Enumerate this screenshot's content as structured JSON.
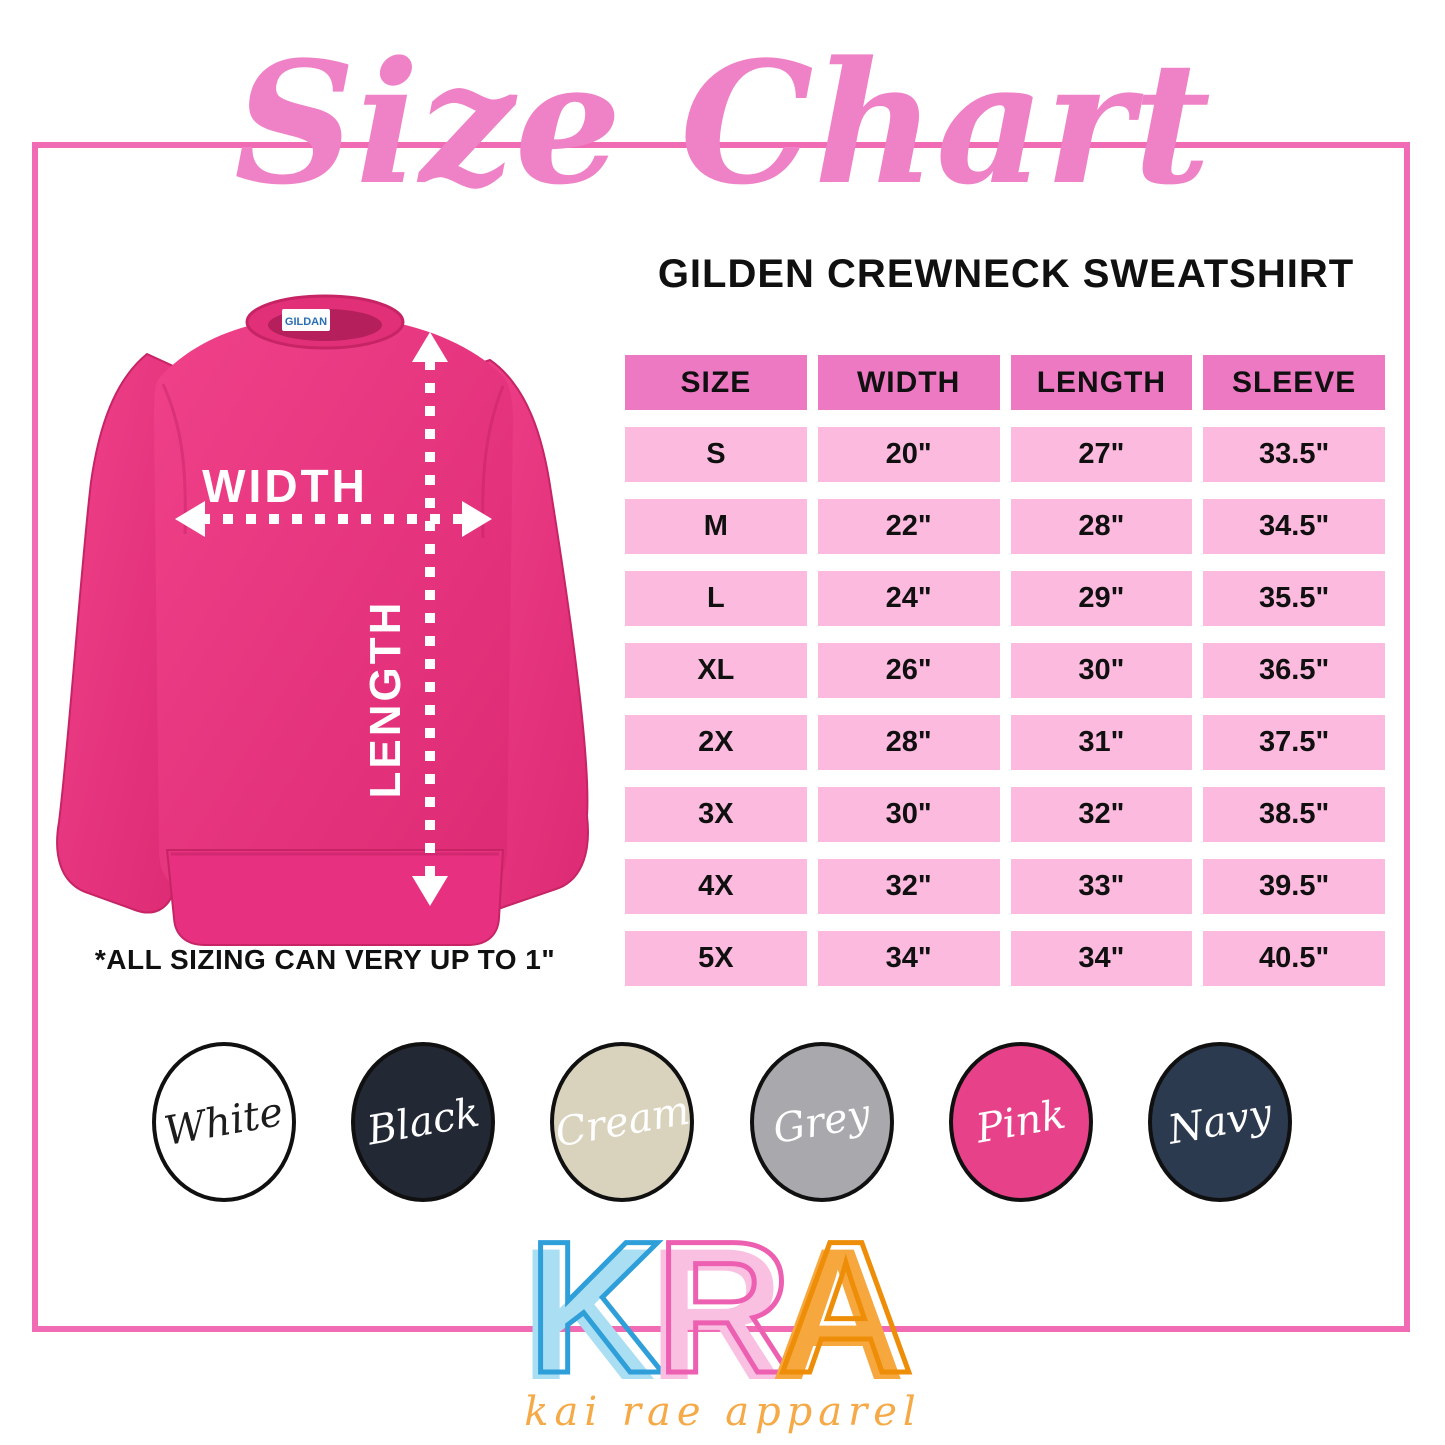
{
  "title": "Size Chart",
  "subtitle": "GILDEN CREWNECK SWEATSHIRT",
  "diagram": {
    "width_label": "WIDTH",
    "length_label": "LENGTH",
    "neck_tag": "GILDAN"
  },
  "note": "*ALL SIZING CAN VERY UP TO 1\"",
  "size_table": {
    "columns": [
      "SIZE",
      "WIDTH",
      "LENGTH",
      "SLEEVE"
    ],
    "rows": [
      [
        "S",
        "20\"",
        "27\"",
        "33.5\""
      ],
      [
        "M",
        "22\"",
        "28\"",
        "34.5\""
      ],
      [
        "L",
        "24\"",
        "29\"",
        "35.5\""
      ],
      [
        "XL",
        "26\"",
        "30\"",
        "36.5\""
      ],
      [
        "2X",
        "28\"",
        "31\"",
        "37.5\""
      ],
      [
        "3X",
        "30\"",
        "32\"",
        "38.5\""
      ],
      [
        "4X",
        "32\"",
        "33\"",
        "39.5\""
      ],
      [
        "5X",
        "34\"",
        "34\"",
        "40.5\""
      ]
    ]
  },
  "colors_available": [
    {
      "name": "White",
      "fill": "#ffffff",
      "text_color": "#1c1c1c"
    },
    {
      "name": "Black",
      "fill": "#222834",
      "text_color": "#ffffff"
    },
    {
      "name": "Cream",
      "fill": "#d9d3bd",
      "text_color": "#ffffff"
    },
    {
      "name": "Grey",
      "fill": "#a8a8ad",
      "text_color": "#ffffff"
    },
    {
      "name": "Pink",
      "fill": "#e74289",
      "text_color": "#ffffff"
    },
    {
      "name": "Navy",
      "fill": "#2c3a50",
      "text_color": "#ffffff"
    }
  ],
  "logo": {
    "letters": [
      {
        "char": "K",
        "fill": "#aadef2",
        "stroke": "#2f9fd9"
      },
      {
        "char": "R",
        "fill": "#f9c0e2",
        "stroke": "#ec5fb1"
      },
      {
        "char": "A",
        "fill": "#f6a73e",
        "stroke": "#ee8d07"
      }
    ],
    "tagline": "kai rae apparel"
  },
  "theme": {
    "title_pink": "#ef82c6",
    "frame_pink": "#f06ab4",
    "table_header_pink": "#ee79c3",
    "table_cell_pink": "#fbbade",
    "shirt_pink": "#e73180"
  }
}
